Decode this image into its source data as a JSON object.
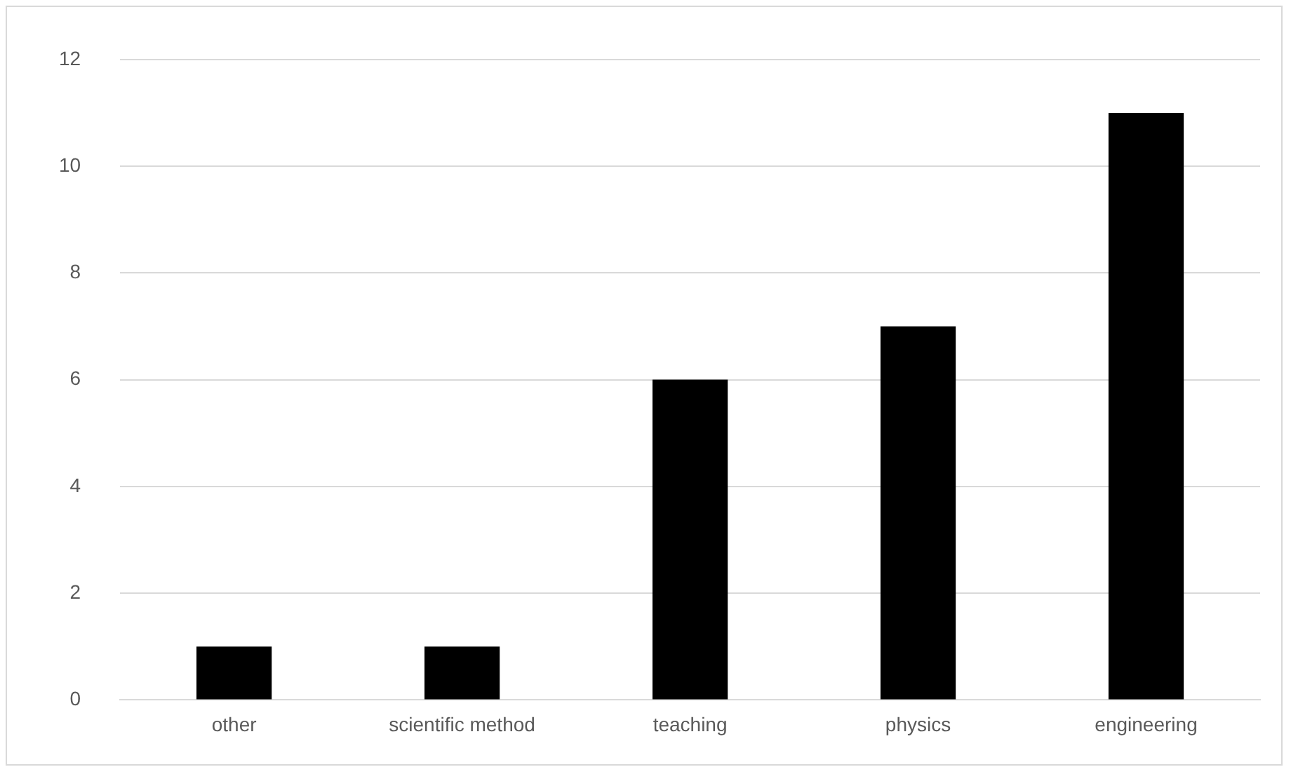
{
  "chart_data": {
    "type": "bar",
    "categories": [
      "other",
      "scientific method",
      "teaching",
      "physics",
      "engineering"
    ],
    "values": [
      1,
      1,
      6,
      7,
      11
    ],
    "color": "#000000",
    "ylim": [
      0,
      12
    ],
    "yticks": [
      0,
      2,
      4,
      6,
      8,
      10,
      12
    ],
    "grid": "y",
    "legend": false
  }
}
